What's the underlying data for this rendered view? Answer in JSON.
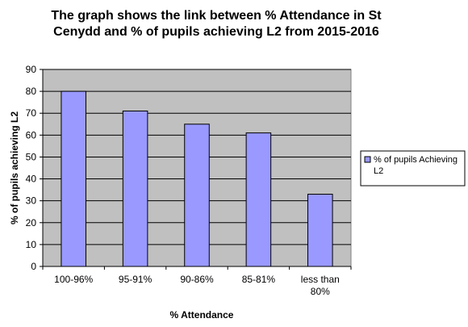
{
  "chart_data": {
    "type": "bar",
    "title": "The graph shows the link between % Attendance in St Cenydd and % of pupils achieving L2 from 2015-2016",
    "title_lines": [
      "The graph shows the link between % Attendance in St",
      "Cenydd and % of pupils achieving L2 from 2015-2016"
    ],
    "xlabel": "% Attendance",
    "ylabel": "% of pupils achieving L2",
    "categories": [
      "100-96%",
      "95-91%",
      "90-86%",
      "85-81%",
      "less than 80%"
    ],
    "category_lines": [
      [
        "100-96%"
      ],
      [
        "95-91%"
      ],
      [
        "90-86%"
      ],
      [
        "85-81%"
      ],
      [
        "less than",
        "80%"
      ]
    ],
    "series": [
      {
        "name": "% of pupils Achieving L2",
        "values": [
          80,
          71,
          65,
          61,
          33
        ]
      }
    ],
    "legend_lines": [
      "% of pupils Achieving",
      "L2"
    ],
    "ylim": [
      0,
      90
    ],
    "yticks": [
      0,
      10,
      20,
      30,
      40,
      50,
      60,
      70,
      80,
      90
    ],
    "grid": true,
    "legend_position": "right",
    "colors": {
      "bar_fill": "#9999ff",
      "bar_stroke": "#000000",
      "plot_bg": "#c0c0c0",
      "grid": "#000000"
    }
  }
}
